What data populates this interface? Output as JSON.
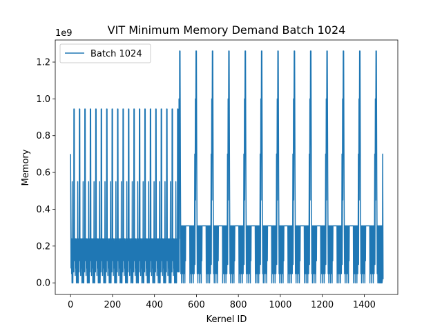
{
  "chart_data": {
    "type": "line",
    "title": "VIT Minimum Memory Demand Batch 1024",
    "xlabel": "Kernel ID",
    "ylabel": "Memory",
    "y_offset_label": "1e9",
    "xlim": [
      -73,
      1560
    ],
    "ylim": [
      -0.063,
      1.32
    ],
    "xticks": [
      0,
      200,
      400,
      600,
      800,
      1000,
      1200,
      1400
    ],
    "yticks": [
      0.0,
      0.2,
      0.4,
      0.6,
      0.8,
      1.0,
      1.2
    ],
    "ytick_labels": [
      "0.0",
      "0.2",
      "0.4",
      "0.6",
      "0.8",
      "1.0",
      "1.2"
    ],
    "legend_position": "upper-left",
    "grid": false,
    "series_color": "#1f77b4",
    "series": [
      {
        "name": "Batch 1024",
        "segment1_cycles": {
          "x_start": 0,
          "x_end": 520,
          "period_kernels": 26,
          "peak": 0.945,
          "secondary_peaks": [
            0.55,
            0.24
          ],
          "trough": 0.0,
          "initial_value": 0.7
        },
        "segment2_cycles": {
          "x_start": 520,
          "x_end": 1490,
          "period_kernels": 78,
          "first_peak_x": 550,
          "peak": 1.26,
          "secondary_peaks": [
            1.0,
            0.7,
            0.31
          ],
          "trough": 0.0,
          "final_value": 0.7
        }
      }
    ]
  }
}
